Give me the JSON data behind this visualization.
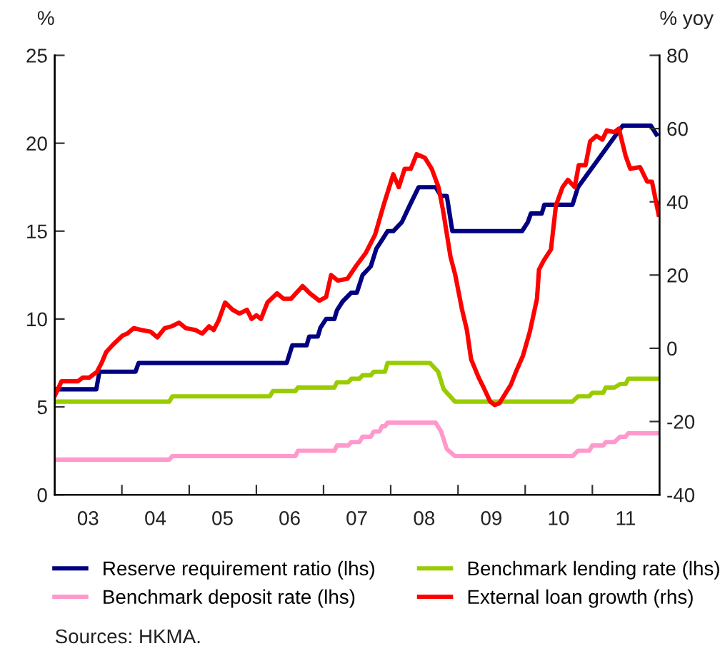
{
  "chart_data": {
    "type": "line",
    "ylabel": "%",
    "y2label": "% yoy",
    "xlim": [
      "2003-01-01",
      "2012-01-01"
    ],
    "xticks": [
      {
        "value": "2004-01-01",
        "label": null
      },
      {
        "value": "2005-01-01",
        "label": null
      },
      {
        "value": "2006-01-01",
        "label": null
      },
      {
        "value": "2007-01-01",
        "label": null
      },
      {
        "value": "2008-01-01",
        "label": null
      },
      {
        "value": "2009-01-01",
        "label": null
      },
      {
        "value": "2010-01-01",
        "label": null
      },
      {
        "value": "2011-01-01",
        "label": null
      },
      {
        "value": "2003-07-01",
        "label": "03"
      },
      {
        "value": "2004-07-01",
        "label": "04"
      },
      {
        "value": "2005-07-01",
        "label": "05"
      },
      {
        "value": "2006-07-01",
        "label": "06"
      },
      {
        "value": "2007-07-01",
        "label": "07"
      },
      {
        "value": "2008-07-01",
        "label": "08"
      },
      {
        "value": "2009-07-01",
        "label": "09"
      },
      {
        "value": "2010-07-01",
        "label": "10"
      },
      {
        "value": "2011-07-01",
        "label": "11"
      }
    ],
    "ylim": [
      0,
      25
    ],
    "yticks": [
      0,
      5,
      10,
      15,
      20,
      25
    ],
    "y2lim": [
      -40,
      80
    ],
    "y2ticks": [
      -40,
      -20,
      0,
      20,
      40,
      60,
      80
    ],
    "grid": false,
    "legend": "bottom",
    "line_style": "solid",
    "annotations": [
      "Sources: HKMA."
    ],
    "series": [
      {
        "name": "Reserve requirement ratio (lhs)",
        "color": "#000080",
        "x": [
          "2003-01-01",
          "2003-08-15",
          "2003-09-01",
          "2004-03-15",
          "2004-04-01",
          "2006-06-15",
          "2006-07-15",
          "2006-10-01",
          "2006-10-15",
          "2006-12-01",
          "2006-12-15",
          "2007-01-15",
          "2007-03-01",
          "2007-03-15",
          "2007-04-15",
          "2007-06-01",
          "2007-07-01",
          "2007-08-01",
          "2007-09-15",
          "2007-10-15",
          "2007-11-15",
          "2007-12-15",
          "2008-01-15",
          "2008-03-01",
          "2008-04-15",
          "2008-06-01",
          "2008-09-01",
          "2008-10-01",
          "2008-11-01",
          "2008-12-01",
          "2009-12-15",
          "2010-01-15",
          "2010-02-01",
          "2010-04-01",
          "2010-04-15",
          "2010-09-15",
          "2010-10-15",
          "2011-06-15",
          "2011-11-15",
          "2011-12-15"
        ],
        "values": [
          6,
          6,
          7,
          7,
          7.5,
          7.5,
          8.5,
          8.5,
          9,
          9,
          9.5,
          10,
          10,
          10.5,
          11,
          11.5,
          11.5,
          12.5,
          13,
          14,
          14.5,
          15,
          15,
          15.5,
          16.5,
          17.5,
          17.5,
          17,
          17,
          15,
          15,
          15.5,
          16,
          16,
          16.5,
          16.5,
          17.5,
          21,
          21,
          20.5
        ]
      },
      {
        "name": "Benchmark lending rate (lhs)",
        "color": "#99cc00",
        "x": [
          "2003-01-01",
          "2004-09-15",
          "2004-10-01",
          "2006-03-15",
          "2006-04-01",
          "2006-08-01",
          "2006-08-15",
          "2007-03-01",
          "2007-03-15",
          "2007-05-15",
          "2007-06-01",
          "2007-07-15",
          "2007-08-01",
          "2007-09-15",
          "2007-10-01",
          "2007-12-01",
          "2007-12-15",
          "2008-08-01",
          "2008-09-15",
          "2008-10-15",
          "2008-12-15",
          "2010-09-15",
          "2010-10-15",
          "2010-12-15",
          "2011-01-01",
          "2011-03-01",
          "2011-03-15",
          "2011-05-01",
          "2011-06-01",
          "2011-07-01",
          "2011-07-15",
          "2012-01-01"
        ],
        "values": [
          5.3,
          5.3,
          5.6,
          5.6,
          5.9,
          5.9,
          6.1,
          6.1,
          6.4,
          6.4,
          6.6,
          6.6,
          6.8,
          6.8,
          7.0,
          7.0,
          7.5,
          7.5,
          7.0,
          6.0,
          5.3,
          5.3,
          5.6,
          5.6,
          5.8,
          5.8,
          6.1,
          6.1,
          6.3,
          6.3,
          6.6,
          6.6
        ]
      },
      {
        "name": "Benchmark deposit rate (lhs)",
        "color": "#ff99cc",
        "x": [
          "2003-01-01",
          "2004-09-15",
          "2004-10-01",
          "2006-08-01",
          "2006-08-15",
          "2007-03-01",
          "2007-03-15",
          "2007-05-15",
          "2007-06-01",
          "2007-07-15",
          "2007-08-01",
          "2007-09-15",
          "2007-10-01",
          "2007-11-01",
          "2007-11-15",
          "2007-12-01",
          "2007-12-15",
          "2008-09-01",
          "2008-10-01",
          "2008-11-01",
          "2008-12-15",
          "2010-09-15",
          "2010-10-15",
          "2010-12-15",
          "2011-01-01",
          "2011-03-01",
          "2011-03-15",
          "2011-05-01",
          "2011-06-01",
          "2011-07-01",
          "2011-07-15",
          "2012-01-01"
        ],
        "values": [
          2.0,
          2.0,
          2.2,
          2.2,
          2.5,
          2.5,
          2.8,
          2.8,
          3.0,
          3.0,
          3.3,
          3.3,
          3.6,
          3.6,
          3.9,
          3.9,
          4.1,
          4.1,
          3.6,
          2.6,
          2.2,
          2.2,
          2.5,
          2.5,
          2.8,
          2.8,
          3.0,
          3.0,
          3.3,
          3.3,
          3.5,
          3.5
        ]
      },
      {
        "name": "External loan growth (rhs)",
        "color": "#ff0000",
        "axis": "y2",
        "x": [
          "2003-01-01",
          "2003-02-07",
          "2003-03-17",
          "2003-05-07",
          "2003-06-02",
          "2003-07-08",
          "2003-08-03",
          "2003-08-18",
          "2003-09-13",
          "2003-10-08",
          "2003-11-14",
          "2004-01-05",
          "2004-01-30",
          "2004-03-06",
          "2004-04-15",
          "2004-06-06",
          "2004-07-12",
          "2004-08-21",
          "2004-09-27",
          "2004-11-07",
          "2004-12-13",
          "2005-02-03",
          "2005-03-13",
          "2005-04-19",
          "2005-05-14",
          "2005-06-09",
          "2005-07-15",
          "2005-08-25",
          "2005-10-01",
          "2005-11-11",
          "2005-12-06",
          "2006-01-01",
          "2006-01-26",
          "2006-03-02",
          "2006-04-23",
          "2006-05-29",
          "2006-07-08",
          "2006-09-09",
          "2006-10-19",
          "2006-12-09",
          "2007-01-15",
          "2007-02-11",
          "2007-03-20",
          "2007-05-11",
          "2007-06-27",
          "2007-08-18",
          "2007-10-08",
          "2007-11-29",
          "2008-01-15",
          "2008-02-14",
          "2008-03-17",
          "2008-04-19",
          "2008-05-21",
          "2008-07-05",
          "2008-08-11",
          "2008-09-17",
          "2008-10-12",
          "2008-11-21",
          "2008-12-17",
          "2009-01-23",
          "2009-02-18",
          "2009-03-13",
          "2009-04-23",
          "2009-05-18",
          "2009-06-24",
          "2009-07-19",
          "2009-08-14",
          "2009-09-20",
          "2009-10-15",
          "2009-11-11",
          "2009-12-20",
          "2010-01-26",
          "2010-03-06",
          "2010-03-17",
          "2010-04-12",
          "2010-05-21",
          "2010-06-17",
          "2010-07-23",
          "2010-08-21",
          "2010-09-27",
          "2010-10-19",
          "2010-11-25",
          "2010-12-20",
          "2011-01-23",
          "2011-02-25",
          "2011-03-20",
          "2011-04-30",
          "2011-05-25",
          "2011-07-01",
          "2011-07-26",
          "2011-09-17",
          "2011-10-26",
          "2011-11-21",
          "2011-12-27"
        ],
        "values": [
          -13,
          -9,
          -9,
          -9,
          -8,
          -8,
          -7,
          -6.5,
          -4,
          -1,
          1,
          3.5,
          4,
          5.5,
          5,
          4.5,
          3,
          5.5,
          6,
          7,
          5.5,
          5,
          4,
          6,
          5,
          7.5,
          12.5,
          10.5,
          9.5,
          10.5,
          8,
          9,
          8,
          12.5,
          15,
          13.5,
          13.5,
          17,
          15,
          13,
          14,
          20,
          18.5,
          19,
          22.5,
          26,
          31,
          40,
          47.5,
          44,
          49,
          49,
          53,
          52,
          49,
          44,
          37.5,
          25,
          20,
          10.5,
          5,
          -3,
          -8,
          -10.5,
          -14.5,
          -15.5,
          -15,
          -12,
          -10,
          -6.5,
          -2,
          4.5,
          13.5,
          21.5,
          24,
          27,
          39,
          44,
          46,
          44,
          50,
          50,
          56.5,
          58,
          57,
          59.5,
          59,
          60,
          52.5,
          49,
          49.5,
          45.5,
          45.5,
          36.5
        ]
      }
    ]
  }
}
